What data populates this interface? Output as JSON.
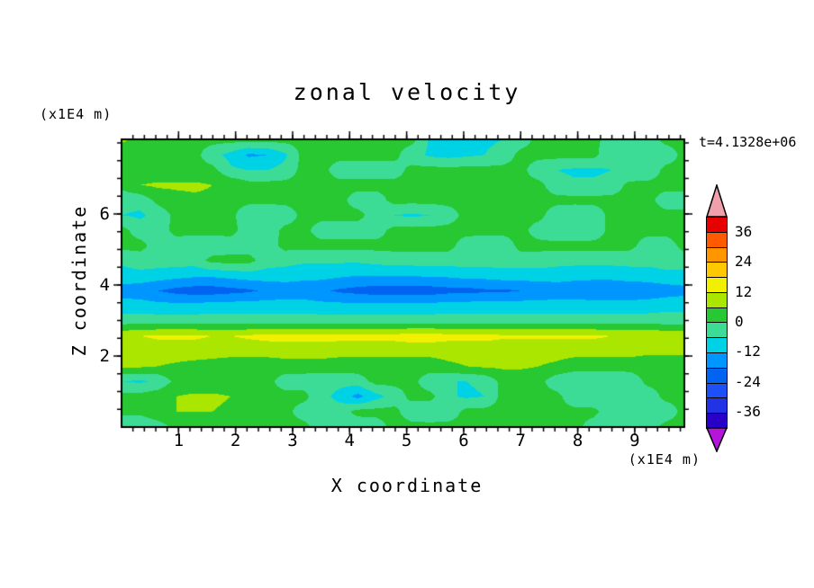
{
  "title": "zonal velocity",
  "timestamp": "t=4.1328e+06",
  "axes": {
    "x_label": "X coordinate",
    "y_label": "Z coordinate",
    "y_unit": "(x1E4 m)",
    "x_unit": "(x1E4 m)"
  },
  "chart_data": {
    "type": "filled_contour",
    "title": "zonal velocity",
    "xlabel": "X coordinate",
    "ylabel": "Z coordinate",
    "x_unit": "(x1E4 m)",
    "y_unit": "(x1E4 m)",
    "time_annotation": "t=4.1328e+06",
    "x_range": [
      0,
      9.87
    ],
    "z_range": [
      0,
      8.1
    ],
    "x_ticks": [
      1,
      2,
      3,
      4,
      5,
      6,
      7,
      8,
      9
    ],
    "z_ticks": [
      2,
      4,
      6
    ],
    "x_minor_step": 0.2,
    "z_minor_step": 0.5,
    "contour_interval": 6,
    "levels": [
      -42,
      -36,
      -30,
      -24,
      -18,
      -12,
      -6,
      0,
      6,
      12,
      18,
      24,
      30,
      36,
      42
    ],
    "colorbar_labels": [
      36,
      24,
      12,
      0,
      -12,
      -24,
      -36
    ],
    "band_colors_ascending": [
      "#2800c8",
      "#2233e6",
      "#1e50fa",
      "#0064f0",
      "#0096ff",
      "#00d2e6",
      "#3cdc96",
      "#28c832",
      "#aae600",
      "#f0f000",
      "#ffc800",
      "#ff9600",
      "#ff5a00",
      "#e60000"
    ],
    "under_color": "#b414dc",
    "over_color": "#f0a0aa",
    "grid": {
      "nx": 32,
      "nz": 20,
      "order": "rows top-to-bottom (z = 8.1 .. 0), columns left-to-right (x = 0 .. 9.87)",
      "units": "m/s",
      "values": [
        [
          7,
          4,
          2,
          2,
          2,
          2,
          2,
          2,
          2,
          2,
          2,
          2,
          2,
          2,
          2,
          2,
          2,
          -7,
          -8,
          -8,
          -7,
          -6,
          -3,
          2,
          2,
          2,
          2,
          -3,
          -3,
          -3,
          2,
          2
        ],
        [
          2,
          2,
          2,
          2,
          2,
          -4,
          -8,
          -13,
          -12,
          -7,
          2,
          2,
          2,
          2,
          2,
          2,
          -4,
          -7,
          -8,
          -7,
          -6,
          -4,
          2,
          2,
          2,
          2,
          2,
          -5,
          -6,
          -6,
          -4,
          2
        ],
        [
          2,
          2,
          2,
          2,
          2,
          2,
          -5,
          -6,
          -6,
          -4,
          2,
          2,
          -3,
          -3,
          -3,
          -3,
          2,
          2,
          2,
          2,
          2,
          2,
          2,
          -4,
          -6,
          -7,
          -7,
          -6,
          -6,
          -5,
          2,
          2
        ],
        [
          2,
          6,
          7,
          7,
          7,
          6,
          5,
          2,
          2,
          2,
          2,
          2,
          2,
          2,
          2,
          2,
          2,
          2,
          2,
          2,
          2,
          2,
          2,
          2,
          -4,
          -5,
          -5,
          -4,
          2,
          2,
          2,
          2
        ],
        [
          -4,
          -4,
          2,
          4,
          5,
          5,
          2,
          2,
          2,
          2,
          2,
          2,
          2,
          -3,
          -3,
          2,
          2,
          2,
          2,
          2,
          2,
          2,
          2,
          2,
          2,
          2,
          2,
          2,
          2,
          2,
          -3,
          -3
        ],
        [
          -6,
          -7,
          -4,
          2,
          2,
          2,
          2,
          -5,
          -6,
          -4,
          2,
          2,
          2,
          2,
          -3,
          -6,
          -7,
          -6,
          -3,
          2,
          2,
          2,
          2,
          2,
          -4,
          -5,
          -4,
          2,
          2,
          2,
          2,
          2
        ],
        [
          2,
          -3,
          -3,
          2,
          2,
          2,
          2,
          -3,
          -4,
          2,
          2,
          -3,
          -3,
          -3,
          -3,
          2,
          2,
          2,
          2,
          2,
          2,
          2,
          2,
          -3,
          -5,
          -5,
          -4,
          2,
          2,
          2,
          2,
          2
        ],
        [
          2,
          2,
          -3,
          -3,
          -4,
          -4,
          -3,
          -3,
          -3,
          2,
          2,
          2,
          2,
          2,
          2,
          2,
          2,
          2,
          2,
          -3,
          -4,
          -4,
          2,
          2,
          2,
          2,
          2,
          2,
          2,
          -3,
          -3,
          2
        ],
        [
          -5,
          -3,
          -3,
          -3,
          -3,
          2,
          2,
          2,
          -3,
          -4,
          -5,
          -5,
          -5,
          -5,
          -4,
          -3,
          -3,
          -3,
          -3,
          -3,
          -3,
          -3,
          -3,
          -3,
          -4,
          -4,
          -4,
          -4,
          -4,
          -4,
          -3,
          -3
        ],
        [
          -8,
          -8,
          -9,
          -10,
          -11,
          -11,
          -10,
          -9,
          -9,
          -9,
          -10,
          -10,
          -11,
          -12,
          -12,
          -12,
          -12,
          -11,
          -11,
          -10,
          -10,
          -9,
          -9,
          -9,
          -9,
          -10,
          -10,
          -10,
          -9,
          -9,
          -8,
          -8
        ],
        [
          -15,
          -16,
          -18,
          -20,
          -21,
          -21,
          -20,
          -19,
          -17,
          -16,
          -16,
          -17,
          -19,
          -20,
          -21,
          -21,
          -21,
          -21,
          -20,
          -20,
          -19,
          -19,
          -18,
          -17,
          -16,
          -16,
          -17,
          -17,
          -17,
          -16,
          -15,
          -14
        ],
        [
          -9,
          -9,
          -10,
          -10,
          -10,
          -9,
          -9,
          -9,
          -9,
          -9,
          -9,
          -10,
          -10,
          -10,
          -10,
          -10,
          -10,
          -10,
          -9,
          -9,
          -9,
          -9,
          -9,
          -9,
          -9,
          -9,
          -9,
          -9,
          -9,
          -9,
          -8,
          -8
        ],
        [
          -3,
          -3,
          -3,
          -3,
          -3,
          -3,
          -3,
          -3,
          -3,
          -3,
          -3,
          -3,
          -3,
          -3,
          -3,
          -3,
          -3,
          -3,
          -3,
          -3,
          -3,
          -3,
          -3,
          -3,
          -3,
          -3,
          -3,
          -3,
          -3,
          -3,
          -3,
          -3
        ],
        [
          11,
          12,
          13,
          13,
          13,
          12,
          12,
          13,
          14,
          14,
          14,
          14,
          14,
          14,
          14,
          14,
          15,
          15,
          14,
          14,
          14,
          13,
          13,
          13,
          13,
          13,
          13,
          12,
          12,
          12,
          11,
          11
        ],
        [
          8,
          8,
          9,
          9,
          9,
          8,
          8,
          8,
          8,
          9,
          9,
          9,
          8,
          8,
          8,
          8,
          8,
          8,
          8,
          8,
          8,
          8,
          8,
          8,
          8,
          8,
          8,
          8,
          8,
          7,
          7,
          7
        ],
        [
          7,
          7,
          6,
          5,
          4,
          4,
          3,
          3,
          3,
          3,
          3,
          3,
          3,
          3,
          3,
          3,
          3,
          3,
          5,
          6,
          7,
          7,
          7,
          6,
          5,
          3,
          3,
          3,
          3,
          3,
          3,
          3
        ],
        [
          -6,
          -7,
          -5,
          2,
          2,
          2,
          2,
          2,
          2,
          -3,
          -3,
          -4,
          -4,
          -3,
          2,
          2,
          2,
          -4,
          -6,
          -6,
          -5,
          2,
          2,
          2,
          -4,
          -6,
          -6,
          -6,
          -5,
          2,
          2,
          2
        ],
        [
          2,
          2,
          4,
          6,
          7,
          7,
          6,
          5,
          2,
          2,
          2,
          -4,
          -8,
          -14,
          -8,
          -4,
          2,
          2,
          -5,
          -7,
          -6,
          2,
          2,
          2,
          2,
          -5,
          -6,
          -6,
          -5,
          -4,
          2,
          2
        ],
        [
          2,
          2,
          5,
          6,
          6,
          6,
          5,
          2,
          2,
          2,
          -3,
          -3,
          -3,
          2,
          2,
          2,
          -4,
          -5,
          -4,
          2,
          2,
          2,
          2,
          2,
          2,
          2,
          2,
          -4,
          -5,
          -5,
          -4,
          2
        ],
        [
          -5,
          -6,
          -3,
          2,
          4,
          5,
          5,
          5,
          4,
          2,
          2,
          -3,
          -4,
          -4,
          -3,
          2,
          2,
          2,
          2,
          2,
          2,
          2,
          2,
          2,
          2,
          2,
          -3,
          -4,
          -4,
          -3,
          2,
          2
        ]
      ]
    }
  }
}
